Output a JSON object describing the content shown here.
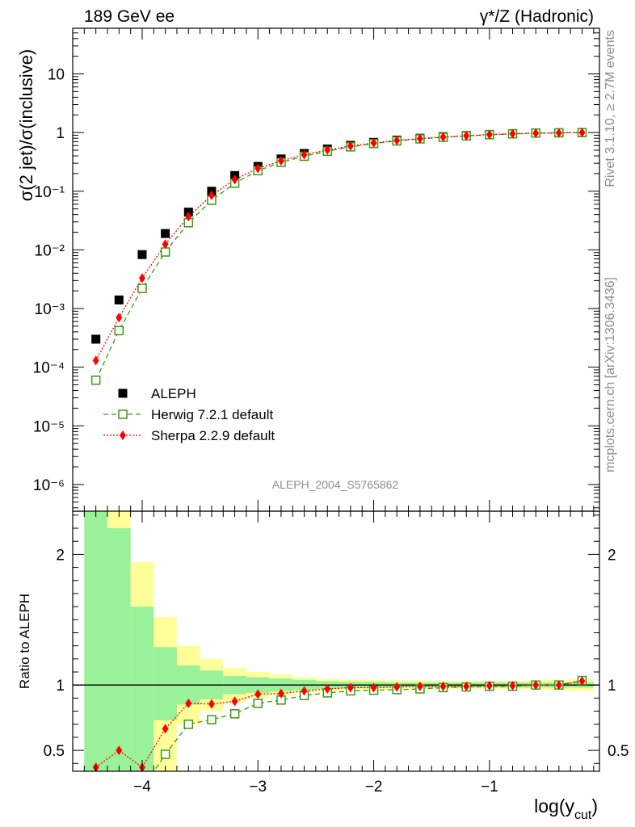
{
  "header": {
    "left": "189 GeV ee",
    "right": "γ*/Z (Hadronic)"
  },
  "side_labels": {
    "top": "Rivet 3.1.10, ≥ 2.7M events",
    "bottom": "mcplots.cern.ch [arXiv:1306.3436]"
  },
  "watermark": "ALEPH_2004_S5765862",
  "colors": {
    "data": "#000000",
    "herwig": "#3a9a10",
    "sherpa": "#ff0000",
    "band_inner": "#99f299",
    "band_outer": "#ffff99"
  },
  "chart_data": [
    {
      "type": "scatter",
      "panel": "main",
      "ylabel": "σ(2 jet)/σ(inclusive)",
      "xlim": [
        -4.6,
        -0.05
      ],
      "ylim": [
        3.5e-07,
        60
      ],
      "yscale": "log",
      "y_tick_labels": [
        "10⁻⁶",
        "10⁻⁵",
        "10⁻⁴",
        "10⁻³",
        "10⁻²",
        "10⁻¹",
        "1",
        "10"
      ],
      "legend_position": "lower-left",
      "x": [
        -4.4,
        -4.2,
        -4.0,
        -3.8,
        -3.6,
        -3.4,
        -3.2,
        -3.0,
        -2.8,
        -2.6,
        -2.4,
        -2.2,
        -2.0,
        -1.8,
        -1.6,
        -1.4,
        -1.2,
        -1.0,
        -0.8,
        -0.6,
        -0.4,
        -0.2
      ],
      "series": [
        {
          "name": "ALEPH",
          "marker": "filled-square",
          "values": [
            0.0003,
            0.0014,
            0.0083,
            0.019,
            0.044,
            0.1,
            0.185,
            0.265,
            0.355,
            0.44,
            0.525,
            0.605,
            0.68,
            0.745,
            0.8,
            0.85,
            0.89,
            0.93,
            0.96,
            0.98,
            0.99,
            0.995
          ]
        },
        {
          "name": "Herwig 7.2.1 default",
          "marker": "open-square",
          "line": "dashed",
          "values": [
            6e-05,
            0.00042,
            0.0022,
            0.0092,
            0.029,
            0.07,
            0.137,
            0.224,
            0.31,
            0.395,
            0.48,
            0.57,
            0.65,
            0.72,
            0.78,
            0.83,
            0.875,
            0.92,
            0.95,
            0.98,
            0.99,
            1.0
          ]
        },
        {
          "name": "Sherpa 2.2.9 default",
          "marker": "filled-diamond",
          "line": "dotted",
          "values": [
            0.00013,
            0.0007,
            0.0033,
            0.0125,
            0.037,
            0.085,
            0.158,
            0.245,
            0.33,
            0.42,
            0.505,
            0.59,
            0.665,
            0.735,
            0.79,
            0.84,
            0.88,
            0.925,
            0.955,
            0.975,
            0.985,
            1.0
          ]
        }
      ]
    },
    {
      "type": "line",
      "panel": "ratio",
      "ylabel": "Ratio to ALEPH",
      "xlabel": "log(y_cut)",
      "xlim": [
        -4.6,
        -0.05
      ],
      "ylim": [
        0.34,
        2.33
      ],
      "x_tick_labels": [
        "−4",
        "−3",
        "−2",
        "−1"
      ],
      "y_tick_labels": [
        "0.5",
        "1",
        "2"
      ],
      "x": [
        -4.4,
        -4.2,
        -4.0,
        -3.8,
        -3.6,
        -3.4,
        -3.2,
        -3.0,
        -2.8,
        -2.6,
        -2.4,
        -2.2,
        -2.0,
        -1.8,
        -1.6,
        -1.4,
        -1.2,
        -1.0,
        -0.8,
        -0.6,
        -0.4,
        -0.2
      ],
      "bin_edges": [
        -4.5,
        -4.3,
        -4.1,
        -3.9,
        -3.7,
        -3.5,
        -3.3,
        -3.1,
        -2.9,
        -2.7,
        -2.5,
        -2.3,
        -2.1,
        -1.9,
        -1.7,
        -1.5,
        -1.3,
        -1.1,
        -0.9,
        -0.7,
        -0.5,
        -0.3,
        -0.1
      ],
      "uncertainty_bands": {
        "inner_up": [
          1.6,
          1.2,
          0.6,
          0.29,
          0.15,
          0.11,
          0.07,
          0.06,
          0.05,
          0.04,
          0.03,
          0.025,
          0.025,
          0.02,
          0.02,
          0.02,
          0.02,
          0.02,
          0.02,
          0.02,
          0.02,
          0.02
        ],
        "outer_up": [
          1.65,
          1.5,
          0.94,
          0.52,
          0.3,
          0.2,
          0.13,
          0.1,
          0.08,
          0.06,
          0.05,
          0.04,
          0.04,
          0.035,
          0.035,
          0.03,
          0.03,
          0.03,
          0.03,
          0.035,
          0.04,
          0.045
        ],
        "inner_down": [
          0.66,
          0.66,
          0.66,
          0.27,
          0.15,
          0.11,
          0.07,
          0.06,
          0.05,
          0.04,
          0.03,
          0.025,
          0.025,
          0.02,
          0.02,
          0.02,
          0.02,
          0.02,
          0.02,
          0.02,
          0.02,
          0.02
        ],
        "outer_down": [
          0.66,
          0.66,
          0.66,
          0.66,
          0.3,
          0.2,
          0.13,
          0.1,
          0.08,
          0.06,
          0.05,
          0.04,
          0.04,
          0.035,
          0.035,
          0.03,
          0.03,
          0.03,
          0.03,
          0.035,
          0.04,
          0.045
        ]
      },
      "series": [
        {
          "name": "Herwig 7.2.1 default",
          "marker": "open-square",
          "line": "dashed",
          "values": [
            null,
            null,
            null,
            0.47,
            0.7,
            0.735,
            0.78,
            0.86,
            0.885,
            0.92,
            0.94,
            0.955,
            0.96,
            0.965,
            0.97,
            0.98,
            0.985,
            0.99,
            0.99,
            1.0,
            1.0,
            1.035
          ]
        },
        {
          "name": "Sherpa 2.2.9 default",
          "marker": "filled-diamond",
          "line": "dotted",
          "values": [
            0.37,
            0.5,
            0.37,
            0.665,
            0.86,
            0.855,
            0.875,
            0.93,
            0.935,
            0.955,
            0.97,
            0.98,
            0.98,
            0.985,
            0.99,
            0.99,
            0.99,
            0.995,
            0.995,
            1.0,
            1.0,
            1.03
          ]
        }
      ]
    }
  ]
}
